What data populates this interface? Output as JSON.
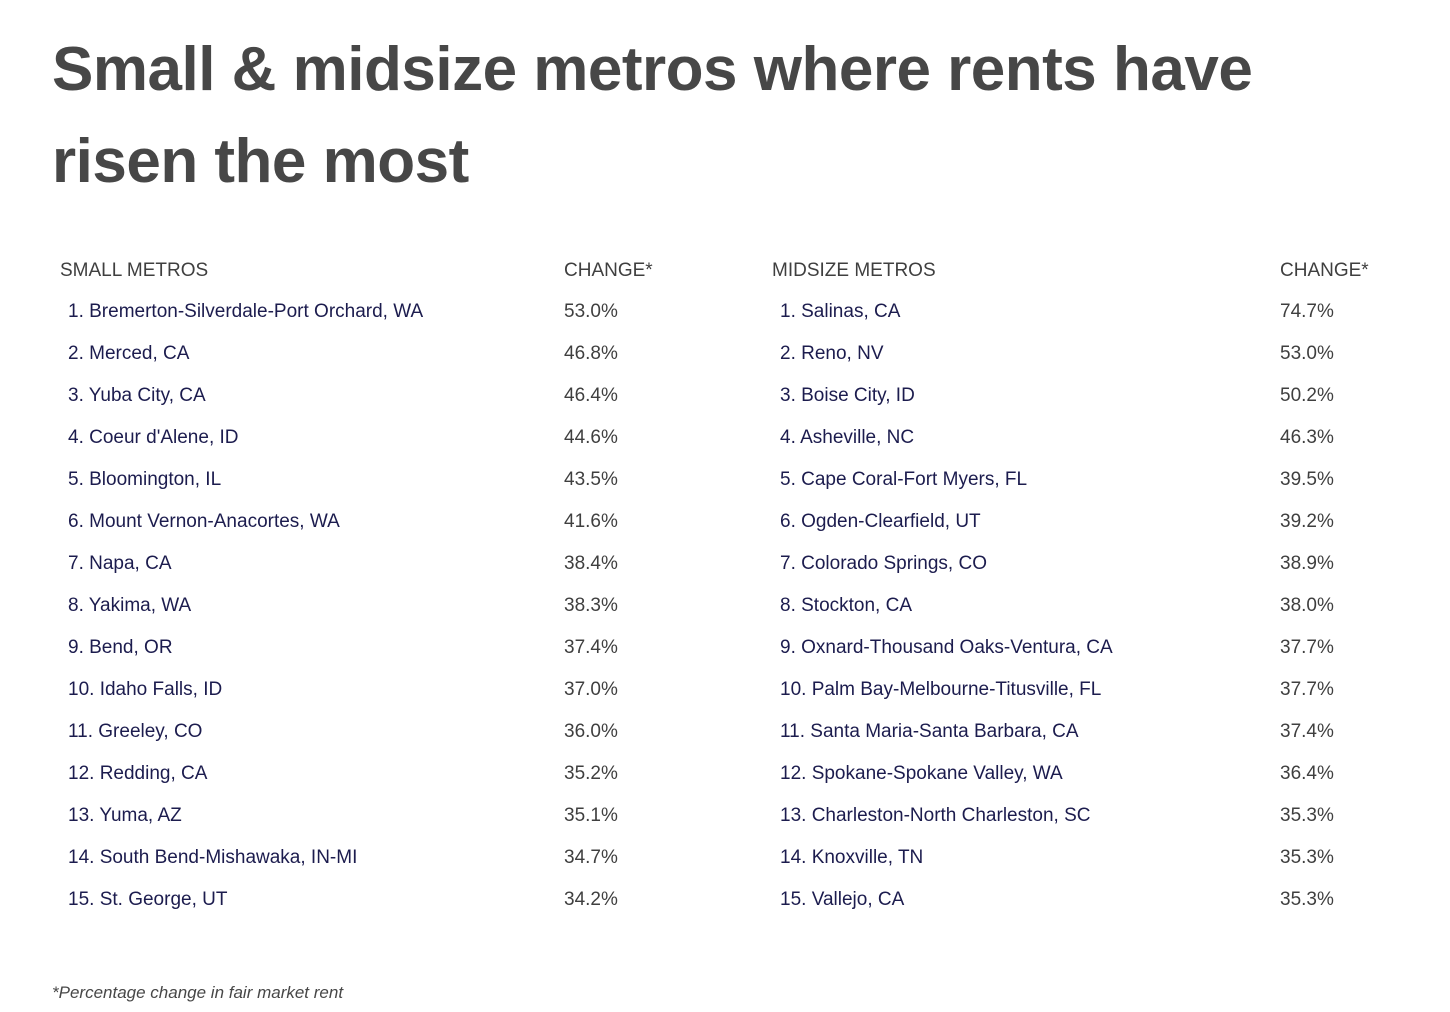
{
  "title": "Small & midsize metros where rents have risen the most",
  "small": {
    "header_name": "SMALL METROS",
    "header_change": "CHANGE*",
    "rows": [
      {
        "name": "1. Bremerton-Silverdale-Port Orchard, WA",
        "change": "53.0%"
      },
      {
        "name": "2. Merced, CA",
        "change": "46.8%"
      },
      {
        "name": "3. Yuba City, CA",
        "change": "46.4%"
      },
      {
        "name": "4. Coeur d'Alene, ID",
        "change": "44.6%"
      },
      {
        "name": "5. Bloomington, IL",
        "change": "43.5%"
      },
      {
        "name": "6. Mount Vernon-Anacortes, WA",
        "change": "41.6%"
      },
      {
        "name": "7. Napa, CA",
        "change": "38.4%"
      },
      {
        "name": "8. Yakima, WA",
        "change": "38.3%"
      },
      {
        "name": "9. Bend, OR",
        "change": "37.4%"
      },
      {
        "name": "10. Idaho Falls, ID",
        "change": "37.0%"
      },
      {
        "name": "11. Greeley, CO",
        "change": "36.0%"
      },
      {
        "name": "12. Redding, CA",
        "change": "35.2%"
      },
      {
        "name": "13. Yuma, AZ",
        "change": "35.1%"
      },
      {
        "name": "14. South Bend-Mishawaka, IN-MI",
        "change": "34.7%"
      },
      {
        "name": "15. St. George, UT",
        "change": "34.2%"
      }
    ]
  },
  "midsize": {
    "header_name": "MIDSIZE METROS",
    "header_change": "CHANGE*",
    "rows": [
      {
        "name": "1. Salinas, CA",
        "change": "74.7%"
      },
      {
        "name": "2. Reno, NV",
        "change": "53.0%"
      },
      {
        "name": "3. Boise City, ID",
        "change": "50.2%"
      },
      {
        "name": "4. Asheville, NC",
        "change": "46.3%"
      },
      {
        "name": "5. Cape Coral-Fort Myers, FL",
        "change": "39.5%"
      },
      {
        "name": "6. Ogden-Clearfield, UT",
        "change": "39.2%"
      },
      {
        "name": "7. Colorado Springs, CO",
        "change": "38.9%"
      },
      {
        "name": "8. Stockton, CA",
        "change": "38.0%"
      },
      {
        "name": "9. Oxnard-Thousand Oaks-Ventura, CA",
        "change": "37.7%"
      },
      {
        "name": "10. Palm Bay-Melbourne-Titusville, FL",
        "change": "37.7%"
      },
      {
        "name": "11. Santa Maria-Santa Barbara, CA",
        "change": "37.4%"
      },
      {
        "name": "12. Spokane-Spokane Valley, WA",
        "change": "36.4%"
      },
      {
        "name": "13. Charleston-North Charleston, SC",
        "change": "35.3%"
      },
      {
        "name": "14. Knoxville, TN",
        "change": "35.3%"
      },
      {
        "name": "15. Vallejo, CA",
        "change": "35.3%"
      }
    ]
  },
  "footnote": "*Percentage change in fair market rent",
  "colors": {
    "title": "#474747",
    "row_name": "#1c1c4e",
    "row_value": "#3f3f3f"
  }
}
